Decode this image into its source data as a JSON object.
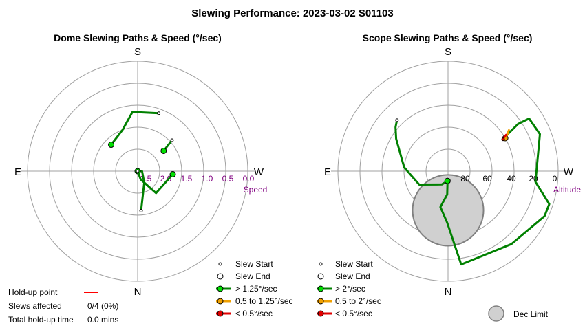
{
  "figure": {
    "title": "Slewing Performance: 2023-03-02 S01103"
  },
  "colors": {
    "ring": "#a0a0a0",
    "axis": "#a0a0a0",
    "scale": "#800080",
    "fast": "#008000",
    "fast_dot": "#00e000",
    "medium": "#f0a000",
    "slow": "#e00000",
    "holdup": "#ff0000",
    "dec_limit": "#d0d0d0"
  },
  "chart_data": [
    {
      "type": "polar",
      "title": "Dome Slewing Paths & Speed (°/sec)",
      "compass": {
        "top": "S",
        "bottom": "N",
        "left": "E",
        "right": "W"
      },
      "radial_label": "Speed",
      "radial_ticks": [
        "2.5",
        "2.0",
        "1.5",
        "1.0",
        "0.5",
        "0.0"
      ],
      "grid": true,
      "legend": [
        {
          "kind": "start",
          "label": "Slew Start"
        },
        {
          "kind": "end",
          "label": "Slew End"
        },
        {
          "kind": "fast",
          "label": "> 1.25°/sec"
        },
        {
          "kind": "medium",
          "label": "0.5 to 1.25°/sec"
        },
        {
          "kind": "slow",
          "label": "< 0.5°/sec"
        }
      ],
      "slews": [
        {
          "speed_class": "fast",
          "points": [
            [
              0,
              2.5
            ],
            [
              90,
              2.4
            ],
            [
              150,
              2.2
            ],
            [
              175,
              1.6
            ]
          ],
          "start": [
            0,
            2.5
          ],
          "end": [
            175,
            1.6
          ]
        },
        {
          "speed_class": "fast",
          "points": [
            [
              95,
              1.7
            ],
            [
              140,
              1.85
            ],
            [
              160,
              2.3
            ],
            [
              175,
              2.5
            ]
          ],
          "start": [
            95,
            1.7
          ],
          "end": [
            175,
            2.5
          ]
        },
        {
          "speed_class": "fast",
          "points": [
            [
              315,
              1.65
            ],
            [
              340,
              1.5
            ],
            [
              355,
              1.15
            ],
            [
              20,
              1.1
            ]
          ],
          "start": [
            315,
            1.65
          ],
          "end": [
            20,
            1.1
          ]
        },
        {
          "speed_class": "fast",
          "points": [
            [
              52,
              1.75
            ],
            [
              48,
              1.45
            ]
          ],
          "start": [
            52,
            1.75
          ],
          "end": [
            48,
            1.45
          ]
        }
      ]
    },
    {
      "type": "polar",
      "title": "Scope Slewing Paths & Speed (°/sec)",
      "compass": {
        "top": "S",
        "bottom": "N",
        "left": "E",
        "right": "W"
      },
      "radial_label": "Altitude",
      "radial_ticks": [
        "80",
        "60",
        "40",
        "20",
        "0"
      ],
      "grid": true,
      "legend": [
        {
          "kind": "start",
          "label": "Slew Start"
        },
        {
          "kind": "end",
          "label": "Slew End"
        },
        {
          "kind": "fast",
          "label": "> 2°/sec"
        },
        {
          "kind": "medium",
          "label": "0.5 to 2°/sec"
        },
        {
          "kind": "slow",
          "label": "< 0.5°/sec"
        },
        {
          "kind": "dec_limit",
          "label": "Dec Limit"
        }
      ],
      "dec_limit": {
        "azimuth": 0,
        "altitude": 58,
        "radius_deg": 29
      },
      "slews": [
        {
          "speed_class": "fast",
          "points": [
            [
              183,
              82
            ],
            [
              182,
              71
            ],
            [
              192,
              60
            ],
            [
              181,
              48
            ],
            [
              172,
              13
            ],
            [
              139,
              11
            ],
            [
              115,
              3
            ],
            [
              108,
              3
            ],
            [
              97,
              18
            ],
            [
              68,
              9
            ],
            [
              57,
              11
            ],
            [
              56,
              21
            ],
            [
              59,
              36
            ]
          ],
          "start": [
            183,
            82
          ],
          "end": [
            59,
            36
          ]
        },
        {
          "speed_class": "fast",
          "points": [
            [
              183,
              82
            ],
            [
              205,
              78
            ],
            [
              245,
              64
            ],
            [
              275,
              54
            ],
            [
              302,
              40
            ],
            [
              310,
              34
            ],
            [
              315,
              31
            ]
          ],
          "start": [
            183,
            82
          ],
          "end": [
            315,
            31
          ]
        }
      ],
      "slew_tails": [
        {
          "speed_class": "medium",
          "points": [
            [
              56,
              30
            ],
            [
              59,
              34
            ],
            [
              60,
              36
            ]
          ]
        },
        {
          "speed_class": "slow",
          "points": [
            [
              58,
              34
            ],
            [
              59,
              37
            ],
            [
              60,
              38
            ]
          ]
        }
      ]
    }
  ],
  "holdup": {
    "point_label": "Hold-up point",
    "slews_affected_label": "Slews affected",
    "slews_affected_value": "0/4 (0%)",
    "total_label": "Total hold-up time",
    "total_value": "0.0 mins"
  }
}
